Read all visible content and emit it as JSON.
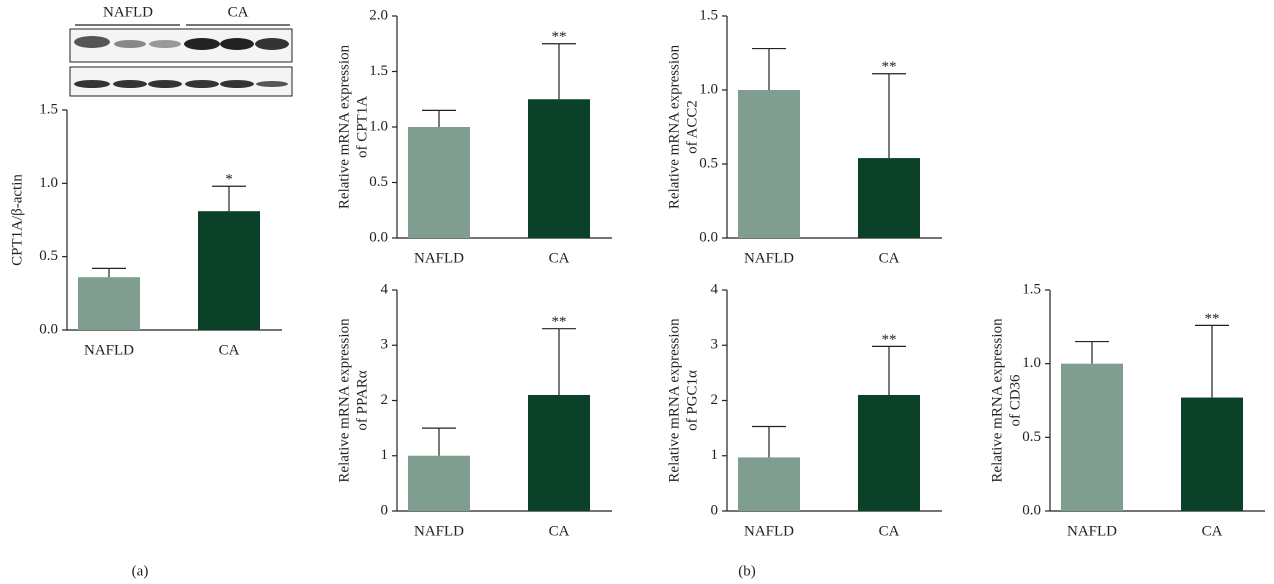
{
  "chart_data": [
    {
      "type": "bar",
      "ylabel": [
        "CPT1A/β-actin"
      ],
      "categories": [
        "NAFLD",
        "CA"
      ],
      "values": [
        0.36,
        0.81
      ],
      "errors": [
        0.06,
        0.17
      ],
      "significance": [
        null,
        "*"
      ],
      "colors": [
        "#7f9e8f",
        "#0b4128"
      ],
      "ylim": [
        0,
        1.5
      ],
      "yticks": [
        {
          "value": 0,
          "label": "0.0"
        },
        0.5,
        {
          "value": 1,
          "label": "1.0"
        },
        1.5
      ],
      "blot_labels": [
        "NAFLD",
        "CA"
      ]
    },
    {
      "type": "bar",
      "ylabel": [
        "Relative mRNA expression",
        "of CPT1A"
      ],
      "categories": [
        "NAFLD",
        "CA"
      ],
      "values": [
        1.0,
        1.25
      ],
      "errors": [
        0.15,
        0.5
      ],
      "significance": [
        null,
        "**"
      ],
      "colors": [
        "#7f9e8f",
        "#0b4128"
      ],
      "ylim": [
        0,
        2
      ],
      "yticks": [
        {
          "value": 0,
          "label": "0.0"
        },
        0.5,
        {
          "value": 1,
          "label": "1.0"
        },
        1.5,
        {
          "value": 2,
          "label": "2.0"
        }
      ]
    },
    {
      "type": "bar",
      "ylabel": [
        "Relative mRNA expression",
        "of ACC2"
      ],
      "categories": [
        "NAFLD",
        "CA"
      ],
      "values": [
        1.0,
        0.54
      ],
      "errors": [
        0.28,
        0.57
      ],
      "significance": [
        null,
        "**"
      ],
      "colors": [
        "#7f9e8f",
        "#0b4128"
      ],
      "ylim": [
        0,
        1.5
      ],
      "yticks": [
        {
          "value": 0,
          "label": "0.0"
        },
        0.5,
        {
          "value": 1,
          "label": "1.0"
        },
        1.5
      ]
    },
    {
      "type": "bar",
      "ylabel": [
        "Relative mRNA expression",
        "of PPARα"
      ],
      "categories": [
        "NAFLD",
        "CA"
      ],
      "values": [
        1.0,
        2.1
      ],
      "errors": [
        0.5,
        1.2
      ],
      "significance": [
        null,
        "**"
      ],
      "colors": [
        "#7f9e8f",
        "#0b4128"
      ],
      "ylim": [
        0,
        4
      ],
      "yticks": [
        0,
        1,
        2,
        3,
        4
      ]
    },
    {
      "type": "bar",
      "ylabel": [
        "Relative mRNA expression",
        "of PGC1α"
      ],
      "categories": [
        "NAFLD",
        "CA"
      ],
      "values": [
        0.97,
        2.1
      ],
      "errors": [
        0.56,
        0.88
      ],
      "significance": [
        null,
        "**"
      ],
      "colors": [
        "#7f9e8f",
        "#0b4128"
      ],
      "ylim": [
        0,
        4
      ],
      "yticks": [
        0,
        1,
        2,
        3,
        4
      ]
    },
    {
      "type": "bar",
      "ylabel": [
        "Relative mRNA expression",
        "of CD36"
      ],
      "categories": [
        "NAFLD",
        "CA"
      ],
      "values": [
        1.0,
        0.77
      ],
      "errors": [
        0.15,
        0.49
      ],
      "significance": [
        null,
        "**"
      ],
      "colors": [
        "#7f9e8f",
        "#0b4128"
      ],
      "ylim": [
        0,
        1.5
      ],
      "yticks": [
        {
          "value": 0,
          "label": "0.0"
        },
        0.5,
        {
          "value": 1,
          "label": "1.0"
        },
        1.5
      ]
    }
  ],
  "panel_labels": [
    "(a)",
    "(b)"
  ]
}
